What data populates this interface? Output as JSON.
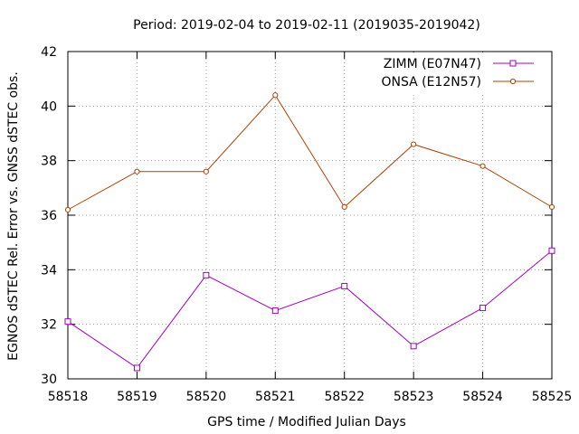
{
  "chart_data": {
    "type": "line",
    "title": "Period: 2019-02-04 to 2019-02-11 (2019035-2019042)",
    "xlabel": "GPS time / Modified Julian Days",
    "ylabel": "EGNOS dSTEC Rel. Error vs. GNSS dSTEC obs.",
    "xlim": [
      58518,
      58525
    ],
    "ylim": [
      30,
      42
    ],
    "xticks": [
      58518,
      58519,
      58520,
      58521,
      58522,
      58523,
      58524,
      58525
    ],
    "yticks": [
      30,
      32,
      34,
      36,
      38,
      40,
      42
    ],
    "grid": true,
    "legend_position": "top-right",
    "x": [
      58518,
      58519,
      58520,
      58521,
      58522,
      58523,
      58524,
      58525
    ],
    "series": [
      {
        "name": "ZIMM (E07N47)",
        "color": "#a000c0",
        "marker": "square",
        "values": [
          32.1,
          30.4,
          33.8,
          32.5,
          33.4,
          31.2,
          32.6,
          34.7
        ]
      },
      {
        "name": "ONSA (E12N57)",
        "color": "#b04000",
        "marker": "circle",
        "values": [
          36.2,
          37.6,
          37.6,
          40.4,
          36.3,
          38.6,
          37.8,
          36.3
        ]
      }
    ]
  }
}
